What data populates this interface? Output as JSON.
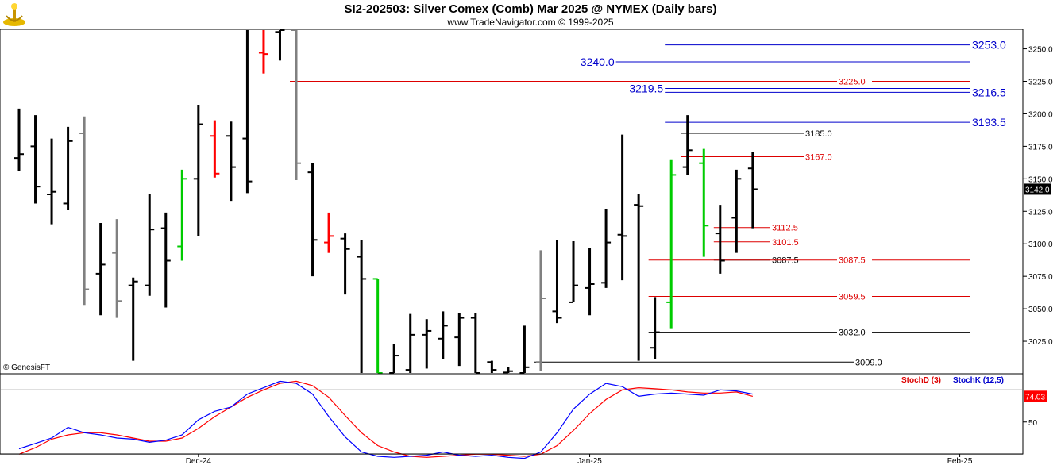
{
  "header": {
    "title": "SI2-202503:  Silver Comex (Comb) Mar 2025 @ NYMEX  (Daily bars)",
    "subtitle": "www.TradeNavigator.com © 1999-2025",
    "copyright": "© GenesisFT"
  },
  "colors": {
    "up_bar": "#00cc00",
    "down_bar": "#ff0000",
    "normal_bar": "#000000",
    "gray_bar": "#808080",
    "blue_level": "#0000cc",
    "red_level": "#dd0000",
    "black_level": "#000000",
    "stochD": "#ff0000",
    "stochK": "#0000ff"
  },
  "chart_data": [
    {
      "type": "ohlc",
      "ylim": [
        3000,
        3265
      ],
      "yticks": [
        3025.0,
        3050.0,
        3075.0,
        3100.0,
        3125.0,
        3150.0,
        3175.0,
        3200.0,
        3225.0,
        3250.0
      ],
      "ytick_labels": [
        "3025.0",
        "3050.0",
        "3075.0",
        "3100.0",
        "3125.0",
        "3150.0",
        "3175.0",
        "3200.0",
        "3225.0",
        "3250.0"
      ],
      "xtick_labels": [
        {
          "label": "Dec-24",
          "bar": 11
        },
        {
          "label": "Jan-25",
          "bar": 35
        },
        {
          "label": "Feb-25",
          "bar": 57.7
        }
      ],
      "last_price_label": "3142.0",
      "bars": [
        {
          "x": 0,
          "o": 3166,
          "h": 3204,
          "l": 3156,
          "c": 3169,
          "col": "k"
        },
        {
          "x": 1,
          "o": 3175,
          "h": 3199,
          "l": 3131,
          "c": 3144,
          "col": "k"
        },
        {
          "x": 2,
          "o": 3138,
          "h": 3181,
          "l": 3115,
          "c": 3140,
          "col": "k"
        },
        {
          "x": 3,
          "o": 3131,
          "h": 3190,
          "l": 3126,
          "c": 3179,
          "col": "k"
        },
        {
          "x": 4,
          "o": 3185,
          "h": 3198,
          "l": 3053,
          "c": 3065,
          "col": "g"
        },
        {
          "x": 5,
          "o": 3077,
          "h": 3116,
          "l": 3045,
          "c": 3084,
          "col": "k"
        },
        {
          "x": 6,
          "o": 3093,
          "h": 3119,
          "l": 3043,
          "c": 3056,
          "col": "g"
        },
        {
          "x": 7,
          "o": 3068,
          "h": 3074,
          "l": 3010,
          "c": 3071,
          "col": "k"
        },
        {
          "x": 8,
          "o": 3068,
          "h": 3138,
          "l": 3060,
          "c": 3111,
          "col": "k"
        },
        {
          "x": 9,
          "o": 3112,
          "h": 3124,
          "l": 3051,
          "c": 3087,
          "col": "k"
        },
        {
          "x": 10,
          "o": 3098,
          "h": 3157,
          "l": 3087,
          "c": 3150,
          "col": "u"
        },
        {
          "x": 11,
          "o": 3150,
          "h": 3207,
          "l": 3106,
          "c": 3192,
          "col": "k"
        },
        {
          "x": 12,
          "o": 3183,
          "h": 3195,
          "l": 3151,
          "c": 3154,
          "col": "d"
        },
        {
          "x": 13,
          "o": 3183,
          "h": 3194,
          "l": 3133,
          "c": 3159,
          "col": "k"
        },
        {
          "x": 14,
          "o": 3181,
          "h": 3270,
          "l": 3139,
          "c": 3148,
          "col": "k"
        },
        {
          "x": 15,
          "o": 3247,
          "h": 3270,
          "l": 3231,
          "c": 3246,
          "col": "d"
        },
        {
          "x": 16,
          "o": 3263,
          "h": 3268,
          "l": 3241,
          "c": 3268,
          "col": "k"
        },
        {
          "x": 17,
          "o": 3268,
          "h": 3268,
          "l": 3149,
          "c": 3162,
          "col": "g"
        },
        {
          "x": 18,
          "o": 3155,
          "h": 3162,
          "l": 3075,
          "c": 3103,
          "col": "k"
        },
        {
          "x": 19,
          "o": 3101,
          "h": 3124,
          "l": 3093,
          "c": 3106,
          "col": "d"
        },
        {
          "x": 20,
          "o": 3104,
          "h": 3108,
          "l": 3061,
          "c": 3096,
          "col": "k"
        },
        {
          "x": 21,
          "o": 3090,
          "h": 3103,
          "l": 3000,
          "c": 3073,
          "col": "k"
        },
        {
          "x": 22,
          "o": 3073,
          "h": 3073,
          "l": 3000,
          "c": 3000,
          "col": "u"
        },
        {
          "x": 23,
          "o": 3000,
          "h": 3023,
          "l": 3000,
          "c": 3014,
          "col": "k"
        },
        {
          "x": 24,
          "o": 3003,
          "h": 3046,
          "l": 3000,
          "c": 3030,
          "col": "k"
        },
        {
          "x": 25,
          "o": 3030,
          "h": 3042,
          "l": 3004,
          "c": 3033,
          "col": "k"
        },
        {
          "x": 26,
          "o": 3027,
          "h": 3048,
          "l": 3011,
          "c": 3037,
          "col": "k"
        },
        {
          "x": 27,
          "o": 3028,
          "h": 3047,
          "l": 3006,
          "c": 3043,
          "col": "k"
        },
        {
          "x": 28,
          "o": 3043,
          "h": 3047,
          "l": 3000,
          "c": 3000,
          "col": "k"
        },
        {
          "x": 29,
          "o": 3009,
          "h": 3010,
          "l": 3000,
          "c": 3003,
          "col": "k"
        },
        {
          "x": 30,
          "o": 3001,
          "h": 3005,
          "l": 3000,
          "c": 3002,
          "col": "k"
        },
        {
          "x": 31,
          "o": 3000,
          "h": 3037,
          "l": 3000,
          "c": 3005,
          "col": "k"
        },
        {
          "x": 32,
          "o": 3009,
          "h": 3095,
          "l": 3002,
          "c": 3058,
          "col": "g"
        },
        {
          "x": 33,
          "o": 3048,
          "h": 3103,
          "l": 3039,
          "c": 3043,
          "col": "k"
        },
        {
          "x": 34,
          "o": 3055,
          "h": 3102,
          "l": 3055,
          "c": 3068,
          "col": "k"
        },
        {
          "x": 35,
          "o": 3066,
          "h": 3097,
          "l": 3045,
          "c": 3069,
          "col": "k"
        },
        {
          "x": 36,
          "o": 3070,
          "h": 3127,
          "l": 3066,
          "c": 3101,
          "col": "k"
        },
        {
          "x": 37,
          "o": 3107,
          "h": 3184,
          "l": 3072,
          "c": 3106,
          "col": "k"
        },
        {
          "x": 38,
          "o": 3130,
          "h": 3138,
          "l": 3010,
          "c": 3129,
          "col": "k"
        },
        {
          "x": 39,
          "o": 3020,
          "h": 3059,
          "l": 3011,
          "c": 3032,
          "col": "k"
        },
        {
          "x": 40,
          "o": 3055,
          "h": 3165,
          "l": 3035,
          "c": 3153,
          "col": "u"
        },
        {
          "x": 41,
          "o": 3159,
          "h": 3199,
          "l": 3153,
          "c": 3172,
          "col": "k"
        },
        {
          "x": 42,
          "o": 3162,
          "h": 3173,
          "l": 3090,
          "c": 3114,
          "col": "u"
        },
        {
          "x": 43,
          "o": 3108,
          "h": 3130,
          "l": 3077,
          "c": 3087,
          "col": "k"
        },
        {
          "x": 44,
          "o": 3120,
          "h": 3157,
          "l": 3093,
          "c": 3150,
          "col": "k"
        },
        {
          "x": 45,
          "o": 3158,
          "h": 3171,
          "l": 3112,
          "c": 3142,
          "col": "k"
        }
      ],
      "levels": [
        {
          "value": 3253.0,
          "label": "3253.0",
          "color": "blue",
          "from": 40,
          "label_pos": "right-blue"
        },
        {
          "value": 3240.0,
          "label": "3240.0",
          "color": "blue",
          "from": 37,
          "label_pos": "left-blue"
        },
        {
          "value": 3225.0,
          "label": "3225.0",
          "color": "red",
          "from": 17,
          "label_pos": "mid"
        },
        {
          "value": 3219.5,
          "label": "3219.5",
          "color": "blue",
          "from": 40,
          "label_pos": "left-blue"
        },
        {
          "value": 3216.5,
          "label": "3216.5",
          "color": "blue",
          "from": 40,
          "label_pos": "right-blue"
        },
        {
          "value": 3193.5,
          "label": "3193.5",
          "color": "blue",
          "from": 40,
          "label_pos": "right-blue"
        },
        {
          "value": 3185.0,
          "label": "3185.0",
          "color": "black",
          "from": 41,
          "label_pos": "near"
        },
        {
          "value": 3167.0,
          "label": "3167.0",
          "color": "red",
          "from": 41,
          "label_pos": "near"
        },
        {
          "value": 3112.5,
          "label": "3112.5",
          "color": "red",
          "from": 43,
          "label_pos": "near-short"
        },
        {
          "value": 3101.5,
          "label": "3101.5",
          "color": "red",
          "from": 43,
          "label_pos": "near-short"
        },
        {
          "value": 3087.5,
          "label": "3087.5",
          "color": "black",
          "from": 43,
          "label_pos": "near-short"
        },
        {
          "value": 3087.5,
          "label": "3087.5",
          "color": "red",
          "from": 39,
          "label_pos": "mid"
        },
        {
          "value": 3059.5,
          "label": "3059.5",
          "color": "red",
          "from": 39,
          "label_pos": "mid"
        },
        {
          "value": 3032.0,
          "label": "3032.0",
          "color": "black",
          "from": 39,
          "label_pos": "mid"
        },
        {
          "value": 3009.0,
          "label": "3009.0",
          "color": "black",
          "from": 32,
          "label_pos": "far"
        }
      ]
    },
    {
      "type": "line",
      "ylim": [
        20,
        95
      ],
      "yticks": [
        50
      ],
      "ytick_labels": [
        "50"
      ],
      "hlines": [
        80,
        20
      ],
      "last_value_label": "74.03",
      "series": [
        {
          "name": "StochD (3)",
          "color": "red",
          "values": [
            20,
            26,
            34,
            38,
            40,
            40,
            38,
            35,
            32,
            32,
            35,
            44,
            55,
            64,
            73,
            80,
            86,
            88,
            84,
            73,
            56,
            40,
            28,
            22,
            18,
            17,
            18,
            19,
            20,
            20,
            19,
            18,
            20,
            28,
            42,
            58,
            71,
            80,
            82,
            81,
            80,
            78,
            77,
            77,
            78,
            74
          ]
        },
        {
          "name": "StochK (12,5)",
          "color": "blue",
          "values": [
            25,
            30,
            35,
            45,
            40,
            38,
            35,
            34,
            31,
            33,
            38,
            52,
            60,
            64,
            76,
            82,
            88,
            86,
            76,
            55,
            36,
            22,
            18,
            17,
            18,
            19,
            22,
            19,
            18,
            19,
            17,
            16,
            22,
            40,
            62,
            76,
            86,
            83,
            74,
            76,
            77,
            76,
            75,
            80,
            79,
            76
          ]
        }
      ]
    }
  ]
}
